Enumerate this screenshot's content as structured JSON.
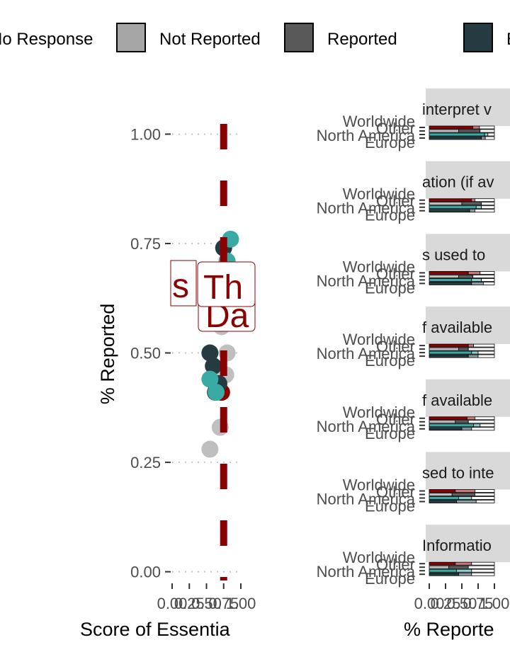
{
  "legend": {
    "items": [
      {
        "label": "No Response",
        "color": "#ffffff"
      },
      {
        "label": "Not Reported",
        "color": "#a6a6a6"
      },
      {
        "label": "Reported",
        "color": "#595959"
      },
      {
        "label": "E",
        "color": "#263a42"
      }
    ]
  },
  "overlay_texts": [
    "s",
    "Th",
    "Da"
  ],
  "chart_data": [
    {
      "type": "scatter",
      "title": "",
      "xlabel": "Score of Essentia",
      "ylabel": "% Reported",
      "ylim": [
        -0.02,
        1.08
      ],
      "xlim": [
        0,
        1
      ],
      "y_ticks": [
        0.0,
        0.25,
        0.5,
        0.75,
        1.0
      ],
      "y_tick_labels": [
        "0.00",
        "0.25",
        "0.50",
        "0.75",
        "1.00"
      ],
      "x_ticks": [
        0.0,
        0.25,
        0.5,
        0.75,
        1.0
      ],
      "x_tick_labels": [
        "0.00",
        "0.25",
        "0.50",
        "0.75",
        "1.00"
      ],
      "grid": true,
      "reference_line": {
        "x": 0.75,
        "style": "dashed",
        "color": "#8b0000"
      },
      "series": [
        {
          "color": "#bfbfbf",
          "points": [
            [
              0.55,
              0.28
            ],
            [
              0.7,
              0.33
            ],
            [
              0.72,
              0.45
            ],
            [
              0.78,
              0.45
            ],
            [
              0.8,
              0.5
            ],
            [
              0.72,
              0.56
            ],
            [
              0.7,
              0.41
            ]
          ]
        },
        {
          "color": "#8b0000",
          "points": [
            [
              0.72,
              0.41
            ],
            [
              0.65,
              0.42
            ]
          ]
        },
        {
          "color": "#263a42",
          "points": [
            [
              0.55,
              0.5
            ],
            [
              0.6,
              0.47
            ],
            [
              0.68,
              0.43
            ],
            [
              0.63,
              0.41
            ],
            [
              0.75,
              0.74
            ]
          ]
        },
        {
          "color": "#3aaba4",
          "points": [
            [
              0.55,
              0.44
            ],
            [
              0.64,
              0.41
            ],
            [
              0.85,
              0.76
            ],
            [
              0.8,
              0.71
            ]
          ]
        }
      ]
    },
    {
      "type": "bar",
      "orientation": "horizontal",
      "stacked": true,
      "xlabel": "% Reporte",
      "xlim": [
        0,
        1
      ],
      "x_ticks": [
        0.0,
        0.25,
        0.5,
        0.75,
        1.0
      ],
      "x_tick_labels": [
        "0.00",
        "0.25",
        "0.50",
        "0.75",
        "1.00"
      ],
      "categories": [
        "Worldwide",
        "Other",
        "North America",
        "Europe"
      ],
      "segment_colors": {
        "Worldwide": [
          "#8b0000",
          "#c87a7a",
          "#ffffff"
        ],
        "Other": [
          "#bfbfbf",
          "#5f5f5f",
          "#ffffff"
        ],
        "North America": [
          "#3aaba4",
          "#8fd0cc",
          "#ffffff"
        ],
        "Europe": [
          "#263a42",
          "#8a9ba2",
          "#ffffff"
        ]
      },
      "facets": [
        {
          "label": "interpret v",
          "values": {
            "Worldwide": [
              0.67,
              0.1,
              0.23
            ],
            "Other": [
              0.45,
              0.33,
              0.22
            ],
            "North America": [
              0.85,
              0.05,
              0.1
            ],
            "Europe": [
              0.8,
              0.06,
              0.14
            ]
          }
        },
        {
          "label": "ation (if av",
          "values": {
            "Worldwide": [
              0.65,
              0.05,
              0.3
            ],
            "Other": [
              0.5,
              0.3,
              0.2
            ],
            "North America": [
              0.72,
              0.08,
              0.2
            ],
            "Europe": [
              0.62,
              0.08,
              0.3
            ]
          }
        },
        {
          "label": "s used to",
          "values": {
            "Worldwide": [
              0.6,
              0.18,
              0.22
            ],
            "Other": [
              0.45,
              0.22,
              0.33
            ],
            "North America": [
              0.65,
              0.15,
              0.2
            ],
            "Europe": [
              0.65,
              0.18,
              0.17
            ]
          }
        },
        {
          "label": "f available",
          "values": {
            "Worldwide": [
              0.6,
              0.08,
              0.32
            ],
            "Other": [
              0.45,
              0.15,
              0.4
            ],
            "North America": [
              0.65,
              0.1,
              0.25
            ],
            "Europe": [
              0.6,
              0.15,
              0.25
            ]
          }
        },
        {
          "label": "f available",
          "values": {
            "Worldwide": [
              0.58,
              0.12,
              0.3
            ],
            "Other": [
              0.4,
              0.2,
              0.4
            ],
            "North America": [
              0.68,
              0.1,
              0.22
            ],
            "Europe": [
              0.5,
              0.15,
              0.35
            ]
          }
        },
        {
          "label": "sed to inte",
          "values": {
            "Worldwide": [
              0.4,
              0.3,
              0.3
            ],
            "Other": [
              0.35,
              0.35,
              0.3
            ],
            "North America": [
              0.45,
              0.2,
              0.35
            ],
            "Europe": [
              0.42,
              0.3,
              0.28
            ]
          }
        },
        {
          "label": "Informatio",
          "values": {
            "Worldwide": [
              0.4,
              0.25,
              0.35
            ],
            "Other": [
              0.3,
              0.3,
              0.4
            ],
            "North America": [
              0.42,
              0.23,
              0.35
            ],
            "Europe": [
              0.45,
              0.2,
              0.35
            ]
          }
        }
      ]
    }
  ]
}
